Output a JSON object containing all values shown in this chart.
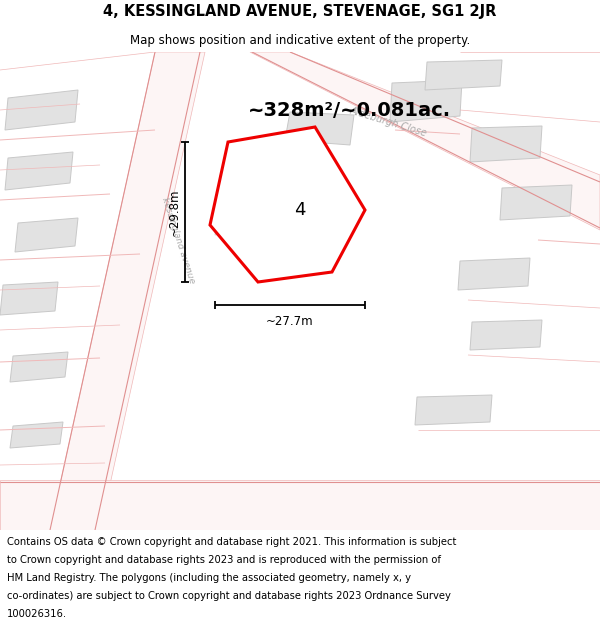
{
  "title": "4, KESSINGLAND AVENUE, STEVENAGE, SG1 2JR",
  "subtitle": "Map shows position and indicative extent of the property.",
  "area_text": "~328m²/~0.081ac.",
  "width_label": "~27.7m",
  "height_label": "~29.8m",
  "property_number": "4",
  "footer": "Contains OS data © Crown copyright and database right 2021. This information is subject to Crown copyright and database rights 2023 and is reproduced with the permission of HM Land Registry. The polygons (including the associated geometry, namely x, y co-ordinates) are subject to Crown copyright and database rights 2023 Ordnance Survey 100026316.",
  "bg_white": "#ffffff",
  "building_fill": "#e2e2e2",
  "building_edge": "#c8c8c8",
  "road_pink": "#f5c8c8",
  "road_pink2": "#f0b8b8",
  "road_pink_dark": "#e09090",
  "property_edge": "#ee0000",
  "property_fill": "#ffffff",
  "street_label_color": "#aaaaaa",
  "title_fontsize": 10.5,
  "subtitle_fontsize": 8.5,
  "area_fontsize": 14,
  "label_fontsize": 8.5,
  "footer_fontsize": 7.2,
  "number_fontsize": 13
}
